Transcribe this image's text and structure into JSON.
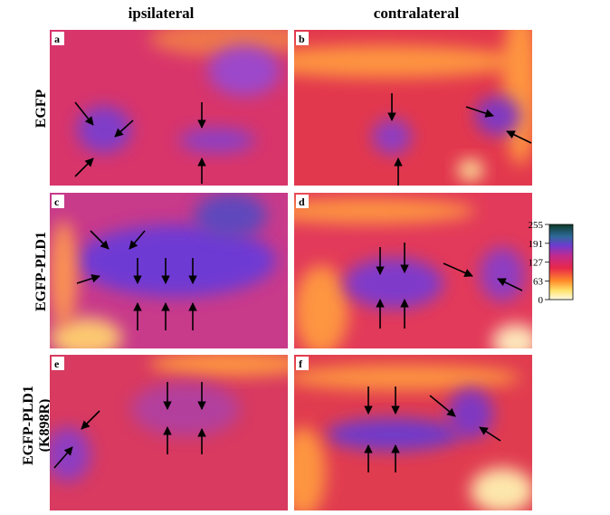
{
  "column_headers": [
    "ipsilateral",
    "contralateral"
  ],
  "row_labels": [
    [
      "EGFP"
    ],
    [
      "EGFP-PLD1"
    ],
    [
      "EGFP-PLD1",
      "(K898R)"
    ]
  ],
  "panels": [
    "a",
    "b",
    "c",
    "d",
    "e",
    "f"
  ],
  "colorbar": {
    "ticks": [
      255,
      191,
      127,
      63,
      0
    ]
  }
}
